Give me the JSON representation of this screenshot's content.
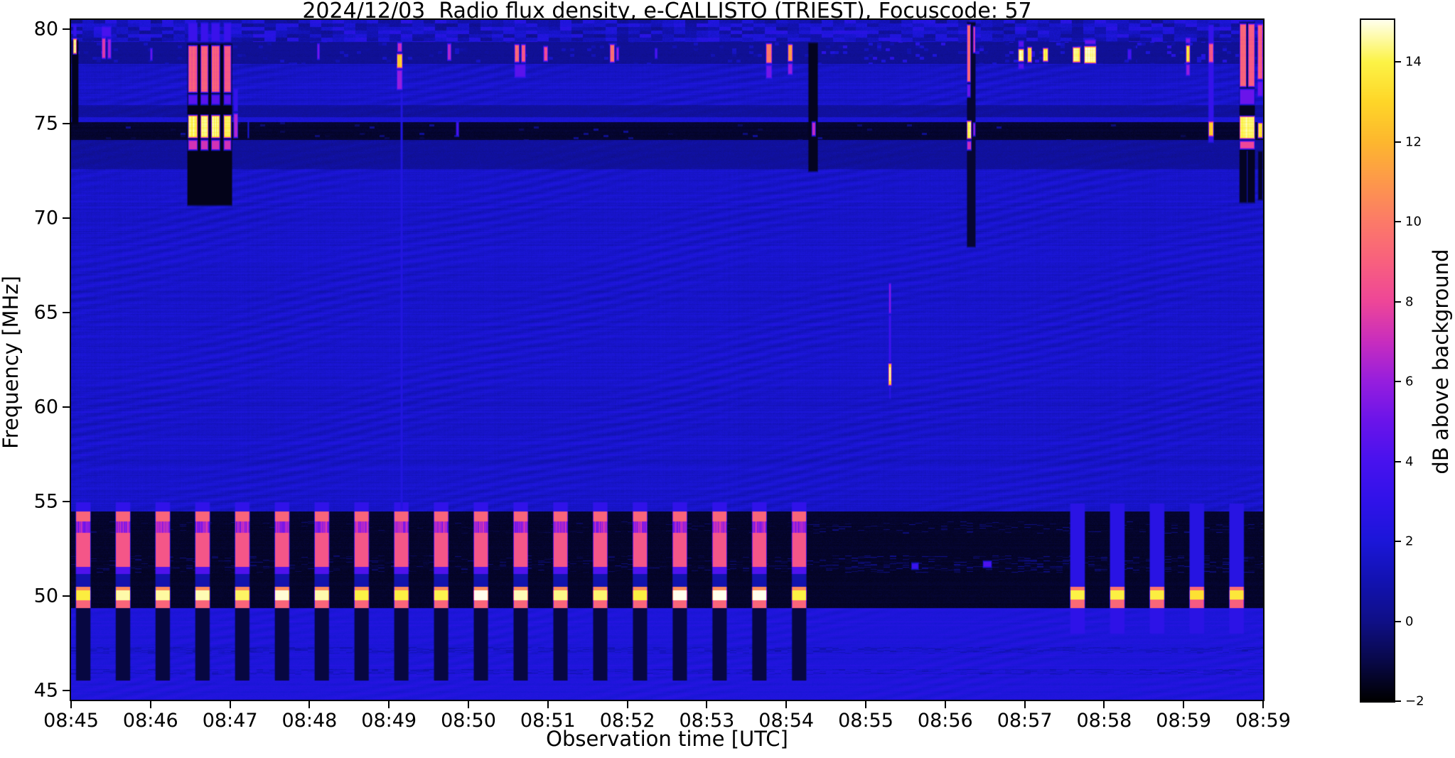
{
  "chart_data": {
    "type": "heatmap",
    "subtype": "radio-spectrogram",
    "title": "2024/12/03  Radio flux density, e-CALLISTO (TRIEST), Focuscode: 57",
    "xlabel": "Observation time [UTC]",
    "ylabel": "Frequency [MHz]",
    "x_ticks": [
      "08:45",
      "08:46",
      "08:47",
      "08:48",
      "08:49",
      "08:50",
      "08:51",
      "08:52",
      "08:53",
      "08:54",
      "08:55",
      "08:56",
      "08:57",
      "08:58",
      "08:59",
      "08:59"
    ],
    "y_ticks": [
      80,
      75,
      70,
      65,
      60,
      55,
      50,
      45
    ],
    "ylim": [
      44.5,
      80.5
    ],
    "time_minutes": 15,
    "start_time": "08:45",
    "grid": false,
    "colorbar": {
      "label": "dB above background",
      "ticks": [
        "14",
        "12",
        "10",
        "8",
        "6",
        "4",
        "2",
        "0",
        "−2"
      ],
      "tick_values": [
        14,
        12,
        10,
        8,
        6,
        4,
        2,
        0,
        -2
      ],
      "vmin": -2,
      "vmax": 15.05
    },
    "colormap_stops": [
      [
        -2,
        0,
        0,
        0
      ],
      [
        -1,
        8,
        8,
        72
      ],
      [
        0,
        15,
        15,
        135
      ],
      [
        1,
        18,
        18,
        177
      ],
      [
        2,
        27,
        22,
        216
      ],
      [
        3,
        48,
        18,
        233
      ],
      [
        4,
        72,
        18,
        238
      ],
      [
        5,
        106,
        20,
        234
      ],
      [
        6,
        150,
        30,
        222
      ],
      [
        7,
        200,
        45,
        190
      ],
      [
        8,
        238,
        70,
        152
      ],
      [
        9,
        248,
        96,
        126
      ],
      [
        10,
        252,
        122,
        104
      ],
      [
        11,
        253,
        152,
        75
      ],
      [
        12,
        253,
        183,
        46
      ],
      [
        13,
        254,
        214,
        40
      ],
      [
        14,
        252,
        243,
        70
      ],
      [
        15.05,
        255,
        255,
        238
      ]
    ],
    "lanes": [
      {
        "f": [
          79.35,
          80.5
        ],
        "type": "patchy",
        "base": 1.1
      },
      {
        "f": [
          78.15,
          79.35
        ],
        "type": "dark_dashes",
        "base": 0.35
      },
      {
        "f": [
          76.0,
          78.15
        ],
        "type": "wavy",
        "base": 1.62
      },
      {
        "f": [
          75.35,
          76.0
        ],
        "type": "dim",
        "base": 0.55
      },
      {
        "f": [
          75.08,
          75.35
        ],
        "type": "line",
        "base": 1.9
      },
      {
        "f": [
          74.15,
          75.08
        ],
        "type": "black",
        "base": -1.35
      },
      {
        "f": [
          72.6,
          74.15
        ],
        "type": "dim",
        "base": 0.5
      },
      {
        "f": [
          54.45,
          72.6
        ],
        "type": "wavy",
        "base": 1.62
      },
      {
        "f": [
          49.35,
          54.45
        ],
        "type": "band_black",
        "base": -1.4
      },
      {
        "f": [
          44.5,
          49.35
        ],
        "type": "blue_floor",
        "base": 2.15
      }
    ],
    "band_noise_rows": [
      {
        "f": [
          53.3,
          53.95
        ],
        "th": 0.88,
        "amp": 14
      },
      {
        "f": [
          51.25,
          52.15
        ],
        "th": 0.8,
        "amp": 9
      }
    ],
    "floor_dark_rows": [
      [
        46.95,
        47.3
      ],
      [
        45.8,
        46.12
      ]
    ],
    "periodic_bursts": {
      "t_range": [
        0,
        9.3
      ],
      "period_min": 0.5005,
      "offset_min": 0.055,
      "on_min": 0.195,
      "bands": [
        {
          "f": [
            54.45,
            54.95
          ],
          "v": 3.0
        },
        {
          "f": [
            53.95,
            54.45
          ],
          "v": 9.2
        },
        {
          "f": [
            53.35,
            53.95
          ],
          "v": 6.3,
          "striated": true
        },
        {
          "f": [
            51.55,
            53.35
          ],
          "v": 8.6
        },
        {
          "f": [
            51.15,
            51.55
          ],
          "v": 4.2
        },
        {
          "f": [
            50.5,
            51.15
          ],
          "v": 0.9
        },
        {
          "f": [
            50.28,
            50.5
          ],
          "v": 10.5
        },
        {
          "f": [
            49.78,
            50.28
          ],
          "v": 14.5,
          "vary": true
        },
        {
          "f": [
            49.35,
            49.78
          ],
          "v": 9.2
        },
        {
          "f": [
            45.5,
            49.35
          ],
          "v": -1.1
        }
      ]
    },
    "resumed_bursts": {
      "t_range": [
        12.5,
        15
      ],
      "bands": [
        {
          "f": [
            50.5,
            54.9
          ],
          "v": 2.6
        },
        {
          "f": [
            50.28,
            50.5
          ],
          "v": 9.5
        },
        {
          "f": [
            49.82,
            50.28
          ],
          "v": 13.6
        },
        {
          "f": [
            49.35,
            49.82
          ],
          "v": 9.0
        },
        {
          "f": [
            48.0,
            49.35
          ],
          "v": 2.8
        }
      ]
    },
    "quiet_gap_minutes": [
      9.3,
      12.5
    ],
    "events_format": "[t_start_min,t_end_min,f_low_MHz,f_high_MHz,dB]",
    "events": [
      [
        0.0,
        0.1,
        74.9,
        79.5,
        -1.6
      ],
      [
        0.02,
        0.075,
        78.65,
        79.55,
        14.6
      ],
      [
        0.02,
        0.075,
        79.55,
        80.3,
        3.2
      ],
      [
        0.38,
        0.44,
        78.4,
        79.6,
        7.5
      ],
      [
        0.455,
        0.51,
        78.4,
        79.55,
        6.2
      ],
      [
        0.38,
        0.51,
        79.55,
        80.2,
        4.0
      ],
      [
        0.99,
        1.03,
        78.3,
        79.05,
        5.0
      ],
      [
        1.455,
        2.035,
        70.6,
        79.3,
        -1.65
      ],
      [
        1.468,
        1.597,
        76.6,
        79.2,
        8.9
      ],
      [
        1.468,
        1.597,
        75.95,
        76.6,
        4.5
      ],
      [
        1.468,
        1.597,
        74.2,
        75.5,
        14.2
      ],
      [
        1.468,
        1.597,
        73.55,
        74.2,
        7.2
      ],
      [
        1.468,
        1.597,
        79.3,
        80.4,
        3.4
      ],
      [
        1.625,
        1.732,
        76.6,
        79.2,
        8.9
      ],
      [
        1.625,
        1.732,
        75.95,
        76.6,
        4.5
      ],
      [
        1.625,
        1.732,
        74.2,
        75.5,
        14.2
      ],
      [
        1.625,
        1.732,
        73.55,
        74.2,
        7.2
      ],
      [
        1.625,
        1.732,
        79.3,
        80.4,
        3.4
      ],
      [
        1.76,
        1.878,
        76.6,
        79.2,
        8.9
      ],
      [
        1.76,
        1.878,
        75.95,
        76.6,
        4.5
      ],
      [
        1.76,
        1.878,
        74.2,
        75.5,
        14.2
      ],
      [
        1.76,
        1.878,
        73.55,
        74.2,
        7.2
      ],
      [
        1.76,
        1.878,
        79.3,
        80.4,
        3.4
      ],
      [
        1.916,
        2.02,
        76.6,
        79.2,
        8.9
      ],
      [
        1.916,
        2.02,
        75.95,
        76.6,
        4.5
      ],
      [
        1.916,
        2.02,
        74.2,
        75.5,
        14.2
      ],
      [
        1.916,
        2.02,
        73.55,
        74.2,
        7.2
      ],
      [
        1.916,
        2.02,
        79.3,
        80.4,
        3.4
      ],
      [
        2.04,
        2.105,
        74.2,
        75.6,
        6.5
      ],
      [
        2.04,
        2.105,
        75.6,
        76.9,
        3.2
      ],
      [
        2.215,
        2.245,
        74.2,
        75.25,
        2.6
      ],
      [
        3.09,
        3.135,
        78.35,
        79.3,
        5.2
      ],
      [
        4.095,
        4.175,
        77.9,
        78.75,
        12.8
      ],
      [
        4.095,
        4.175,
        76.75,
        77.9,
        6.0
      ],
      [
        4.1,
        4.17,
        78.75,
        79.35,
        7.0
      ],
      [
        4.14,
        4.18,
        54.5,
        76.7,
        2.35
      ],
      [
        4.73,
        4.79,
        78.3,
        79.3,
        6.5
      ],
      [
        4.84,
        4.885,
        74.3,
        75.15,
        4.2
      ],
      [
        5.575,
        5.645,
        78.2,
        79.25,
        9.2
      ],
      [
        5.66,
        5.725,
        78.2,
        79.25,
        8.6
      ],
      [
        5.575,
        5.725,
        77.4,
        78.2,
        4.5
      ],
      [
        5.94,
        6.005,
        78.25,
        79.15,
        8.2
      ],
      [
        6.775,
        6.845,
        78.2,
        79.25,
        9.4
      ],
      [
        6.855,
        6.9,
        78.3,
        79.1,
        6.0
      ],
      [
        7.34,
        7.385,
        78.4,
        79.05,
        4.2
      ],
      [
        8.74,
        8.825,
        78.15,
        79.3,
        9.8
      ],
      [
        8.74,
        8.825,
        77.35,
        78.15,
        5.2
      ],
      [
        9.015,
        9.085,
        78.25,
        79.25,
        11.2
      ],
      [
        9.015,
        9.085,
        77.55,
        78.25,
        6.0
      ],
      [
        9.27,
        9.405,
        72.4,
        79.35,
        -1.55
      ],
      [
        9.315,
        9.375,
        74.3,
        75.15,
        6.8
      ],
      [
        10.285,
        10.325,
        64.9,
        66.6,
        5.6
      ],
      [
        10.285,
        10.325,
        62.35,
        64.9,
        3.7
      ],
      [
        10.28,
        10.33,
        61.1,
        62.35,
        13.0
      ],
      [
        10.29,
        10.32,
        61.35,
        62.15,
        15.0
      ],
      [
        10.29,
        10.32,
        60.4,
        61.1,
        3.2
      ],
      [
        10.57,
        10.67,
        51.35,
        51.8,
        3.4
      ],
      [
        11.47,
        11.59,
        51.45,
        51.9,
        4.2
      ],
      [
        11.265,
        11.39,
        68.4,
        80.45,
        -1.3
      ],
      [
        11.268,
        11.325,
        77.15,
        80.3,
        9.6
      ],
      [
        11.268,
        11.325,
        76.35,
        77.15,
        5.0
      ],
      [
        11.268,
        11.335,
        74.15,
        75.2,
        14.2
      ],
      [
        11.268,
        11.335,
        73.55,
        74.15,
        7.0
      ],
      [
        11.345,
        11.385,
        78.7,
        80.2,
        8.6
      ],
      [
        11.345,
        11.385,
        74.3,
        75.1,
        6.4
      ],
      [
        11.915,
        11.995,
        78.25,
        79.0,
        14.6
      ],
      [
        11.915,
        11.995,
        77.85,
        78.25,
        4.5
      ],
      [
        11.915,
        11.995,
        79.0,
        79.45,
        4.5
      ],
      [
        12.03,
        12.095,
        78.2,
        79.1,
        13.2
      ],
      [
        12.225,
        12.3,
        78.25,
        79.05,
        14.0
      ],
      [
        12.6,
        12.705,
        78.2,
        79.1,
        14.2
      ],
      [
        12.745,
        12.905,
        78.15,
        79.15,
        14.6
      ],
      [
        12.75,
        12.9,
        79.15,
        79.5,
        5.0
      ],
      [
        13.29,
        13.35,
        78.35,
        79.0,
        4.0
      ],
      [
        14.025,
        14.085,
        78.2,
        79.2,
        13.6
      ],
      [
        14.025,
        14.085,
        77.5,
        78.2,
        6.0
      ],
      [
        14.02,
        14.09,
        79.2,
        79.6,
        5.5
      ],
      [
        14.305,
        14.385,
        73.95,
        80.3,
        3.2
      ],
      [
        14.31,
        14.38,
        74.3,
        75.15,
        12.6
      ],
      [
        14.31,
        14.38,
        78.2,
        79.3,
        8.6
      ],
      [
        14.695,
        14.905,
        70.75,
        80.45,
        -1.5
      ],
      [
        14.7,
        14.795,
        76.9,
        80.35,
        9.4
      ],
      [
        14.805,
        14.9,
        76.9,
        80.35,
        9.0
      ],
      [
        14.7,
        14.9,
        75.95,
        76.9,
        5.0
      ],
      [
        14.7,
        14.9,
        74.15,
        75.45,
        14.3
      ],
      [
        14.7,
        14.9,
        73.6,
        74.15,
        8.0
      ],
      [
        14.79,
        14.81,
        70.8,
        73.6,
        2.2
      ],
      [
        14.925,
        15.0,
        77.3,
        80.3,
        8.8
      ],
      [
        14.925,
        15.0,
        76.4,
        77.3,
        5.0
      ],
      [
        14.93,
        15.0,
        74.2,
        75.1,
        13.4
      ],
      [
        14.93,
        15.0,
        70.9,
        73.6,
        -1.4
      ]
    ],
    "colors": {
      "figure_background": "#ffffff",
      "text": "#000000",
      "axis": "#000000"
    }
  }
}
